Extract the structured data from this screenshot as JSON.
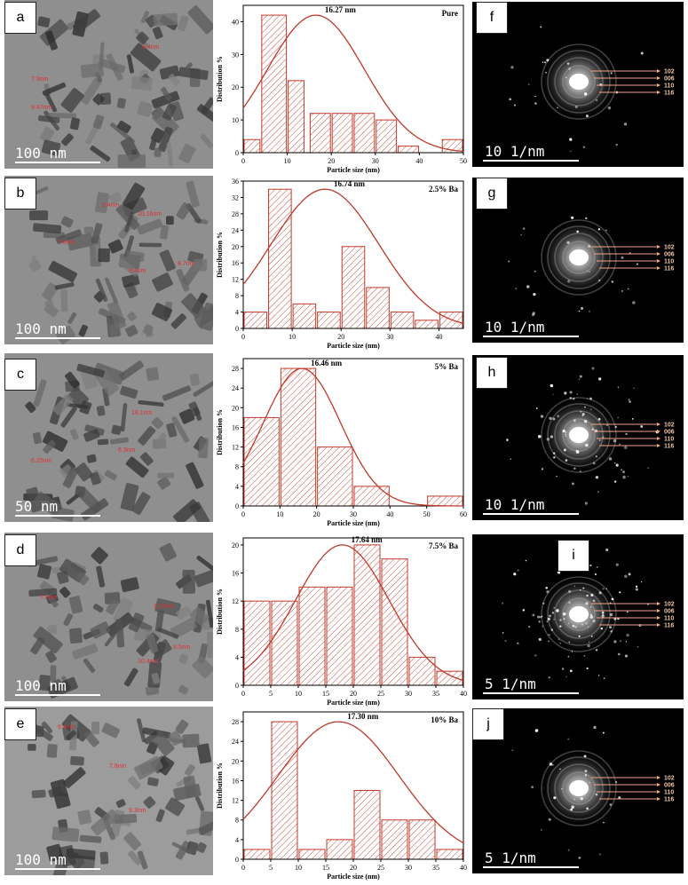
{
  "colors": {
    "bar_stroke": "#c0392b",
    "curve": "#c0392b",
    "hkl_arrow": "#f4a582"
  },
  "panels": [
    {
      "tem_letter": "a",
      "saed_letter": "f",
      "tem_scale": "100 nm",
      "saed_scale": "10 1/nm",
      "tem_measurements": [
        "9.47nm",
        "7.9nm",
        "9.4nm"
      ]
    },
    {
      "tem_letter": "b",
      "saed_letter": "g",
      "tem_scale": "100 nm",
      "saed_scale": "10 1/nm",
      "tem_measurements": [
        "10.16nm",
        "9.4nm",
        "7.8nm",
        "9.4nm",
        "8.7nm"
      ]
    },
    {
      "tem_letter": "c",
      "saed_letter": "h",
      "tem_scale": "50 nm",
      "saed_scale": "10 1/nm",
      "tem_measurements": [
        "6.25nm",
        "18.1nm",
        "6.3nm"
      ]
    },
    {
      "tem_letter": "d",
      "saed_letter": "i",
      "tem_scale": "100 nm",
      "saed_scale": "5 1/nm",
      "tem_measurements": [
        "7.8nm",
        "12.9nm",
        "9.5nm",
        "10.4nm"
      ]
    },
    {
      "tem_letter": "e",
      "saed_letter": "j",
      "tem_scale": "100 nm",
      "saed_scale": "5 1/nm",
      "tem_measurements": [
        "9.4nm",
        "7.8nm",
        "9.3nm"
      ]
    }
  ],
  "hkl": [
    "102",
    "006",
    "110",
    "116"
  ],
  "chart_data": [
    {
      "type": "bar",
      "sample": "Pure",
      "mean_label": "16.27 nm",
      "xlabel": "Particle size (nm)",
      "ylabel": "Distribution %",
      "xlim": [
        0,
        50
      ],
      "ylim": [
        0,
        45
      ],
      "xticks": [
        0,
        10,
        20,
        30,
        40,
        50
      ],
      "yticks": [
        0,
        10,
        20,
        30,
        40
      ],
      "bins": [
        [
          0,
          4,
          4
        ],
        [
          4,
          10,
          42
        ],
        [
          10,
          14,
          22
        ],
        [
          15,
          20,
          12
        ],
        [
          20,
          25,
          12
        ],
        [
          25,
          30,
          12
        ],
        [
          30,
          35,
          10
        ],
        [
          35,
          40,
          2
        ],
        [
          45,
          50,
          4
        ]
      ],
      "fit": {
        "mean": 16.5,
        "sd": 11,
        "peak": 42
      }
    },
    {
      "type": "bar",
      "sample": "2.5% Ba",
      "mean_label": "16.74 nm",
      "xlabel": "Particle size (nm)",
      "ylabel": "Distribution %",
      "xlim": [
        0,
        45
      ],
      "ylim": [
        0,
        36
      ],
      "xticks": [
        0,
        10,
        20,
        30,
        40
      ],
      "yticks": [
        0,
        4,
        8,
        12,
        16,
        20,
        24,
        28,
        32,
        36
      ],
      "bins": [
        [
          0,
          5,
          4
        ],
        [
          5,
          10,
          34
        ],
        [
          10,
          15,
          6
        ],
        [
          15,
          20,
          4
        ],
        [
          20,
          25,
          20
        ],
        [
          25,
          30,
          10
        ],
        [
          30,
          35,
          4
        ],
        [
          35,
          40,
          2
        ],
        [
          40,
          45,
          4
        ]
      ],
      "fit": {
        "mean": 16.7,
        "sd": 11,
        "peak": 34
      }
    },
    {
      "type": "bar",
      "sample": "5% Ba",
      "mean_label": "16.46 nm",
      "xlabel": "Particle size (nm)",
      "ylabel": "Distribution %",
      "xlim": [
        0,
        60
      ],
      "ylim": [
        0,
        30
      ],
      "xticks": [
        0,
        10,
        20,
        30,
        40,
        50,
        60
      ],
      "yticks": [
        0,
        4,
        8,
        12,
        16,
        20,
        24,
        28
      ],
      "bins": [
        [
          0,
          10,
          18
        ],
        [
          10,
          20,
          28
        ],
        [
          20,
          30,
          12
        ],
        [
          30,
          40,
          4
        ],
        [
          50,
          60,
          2
        ]
      ],
      "fit": {
        "mean": 16,
        "sd": 10.5,
        "peak": 28
      }
    },
    {
      "type": "bar",
      "sample": "7.5% Ba",
      "mean_label": "17.64 nm",
      "xlabel": "Particle size (nm)",
      "ylabel": "Distribution %",
      "xlim": [
        0,
        40
      ],
      "ylim": [
        0,
        21
      ],
      "xticks": [
        0,
        5,
        10,
        15,
        20,
        25,
        30,
        35,
        40
      ],
      "yticks": [
        0,
        4,
        8,
        12,
        16,
        20
      ],
      "bins": [
        [
          0,
          5,
          12
        ],
        [
          5,
          10,
          12
        ],
        [
          10,
          15,
          14
        ],
        [
          15,
          20,
          14
        ],
        [
          20,
          25,
          20
        ],
        [
          25,
          30,
          18
        ],
        [
          30,
          35,
          4
        ],
        [
          35,
          40,
          2
        ]
      ],
      "fit": {
        "mean": 18,
        "sd": 8.5,
        "peak": 20
      }
    },
    {
      "type": "bar",
      "sample": "10% Ba",
      "mean_label": "17.30 nm",
      "xlabel": "Particle size (nm)",
      "ylabel": "Distribution %",
      "xlim": [
        0,
        40
      ],
      "ylim": [
        0,
        30
      ],
      "xticks": [
        0,
        5,
        10,
        15,
        20,
        25,
        30,
        35,
        40
      ],
      "yticks": [
        0,
        4,
        8,
        12,
        16,
        20,
        24,
        28
      ],
      "bins": [
        [
          0,
          5,
          2
        ],
        [
          5,
          10,
          28
        ],
        [
          10,
          15,
          2
        ],
        [
          15,
          20,
          4
        ],
        [
          20,
          25,
          14
        ],
        [
          25,
          30,
          8
        ],
        [
          30,
          35,
          8
        ],
        [
          35,
          40,
          2
        ]
      ],
      "fit": {
        "mean": 17.3,
        "sd": 11,
        "peak": 28
      }
    }
  ]
}
